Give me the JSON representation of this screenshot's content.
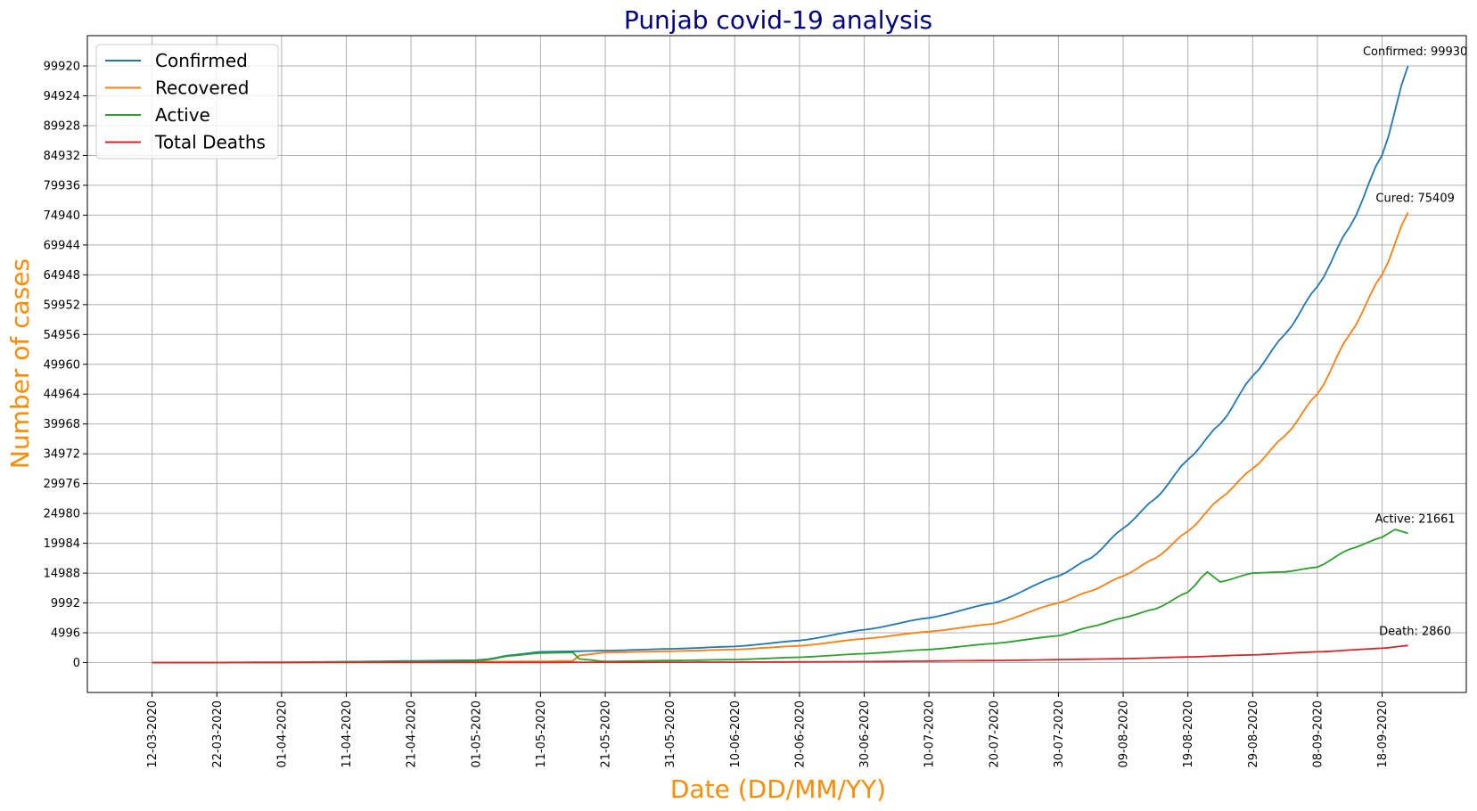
{
  "chart_data": {
    "type": "line",
    "title": "Punjab covid-19 analysis",
    "xlabel": "Date (DD/MM/YY)",
    "ylabel": "Number of cases",
    "x_ticks": [
      "12-03-2020",
      "22-03-2020",
      "01-04-2020",
      "11-04-2020",
      "21-04-2020",
      "01-05-2020",
      "11-05-2020",
      "21-05-2020",
      "31-05-2020",
      "10-06-2020",
      "20-06-2020",
      "30-06-2020",
      "10-07-2020",
      "20-07-2020",
      "30-07-2020",
      "09-08-2020",
      "19-08-2020",
      "29-08-2020",
      "08-09-2020",
      "18-09-2020"
    ],
    "y_ticks": [
      0,
      4996,
      9992,
      14988,
      19984,
      24980,
      29976,
      34972,
      39968,
      44964,
      49960,
      54956,
      59952,
      64948,
      69944,
      74940,
      79936,
      84932,
      89928,
      94924,
      99920
    ],
    "xlim": [
      "2020-03-02",
      "2020-10-01"
    ],
    "ylim": [
      -5000,
      105000
    ],
    "grid": true,
    "legend_position": "top-left",
    "colors": {
      "title": "#000080",
      "axis_labels": "#ff8c00",
      "grid": "#b0b0b0"
    },
    "series": [
      {
        "name": "Confirmed",
        "color": "#1f77b4",
        "points": [
          [
            "2020-03-12",
            0
          ],
          [
            "2020-03-22",
            20
          ],
          [
            "2020-04-01",
            50
          ],
          [
            "2020-04-11",
            150
          ],
          [
            "2020-04-21",
            280
          ],
          [
            "2020-05-01",
            400
          ],
          [
            "2020-05-03",
            600
          ],
          [
            "2020-05-06",
            1200
          ],
          [
            "2020-05-11",
            1800
          ],
          [
            "2020-05-16",
            1900
          ],
          [
            "2020-05-21",
            2000
          ],
          [
            "2020-05-31",
            2300
          ],
          [
            "2020-06-10",
            2700
          ],
          [
            "2020-06-20",
            3700
          ],
          [
            "2020-06-30",
            5500
          ],
          [
            "2020-07-10",
            7500
          ],
          [
            "2020-07-20",
            10000
          ],
          [
            "2020-07-30",
            14500
          ],
          [
            "2020-08-04",
            17500
          ],
          [
            "2020-08-09",
            22500
          ],
          [
            "2020-08-14",
            27500
          ],
          [
            "2020-08-19",
            34000
          ],
          [
            "2020-08-24",
            40000
          ],
          [
            "2020-08-29",
            48000
          ],
          [
            "2020-09-03",
            55000
          ],
          [
            "2020-09-08",
            63000
          ],
          [
            "2020-09-13",
            73000
          ],
          [
            "2020-09-18",
            85000
          ],
          [
            "2020-09-22",
            99930
          ]
        ]
      },
      {
        "name": "Recovered",
        "color": "#ff7f0e",
        "points": [
          [
            "2020-03-12",
            0
          ],
          [
            "2020-04-01",
            20
          ],
          [
            "2020-04-21",
            100
          ],
          [
            "2020-05-01",
            150
          ],
          [
            "2020-05-11",
            200
          ],
          [
            "2020-05-16",
            300
          ],
          [
            "2020-05-17",
            1200
          ],
          [
            "2020-05-21",
            1700
          ],
          [
            "2020-05-31",
            1900
          ],
          [
            "2020-06-10",
            2200
          ],
          [
            "2020-06-20",
            2800
          ],
          [
            "2020-06-30",
            4000
          ],
          [
            "2020-07-10",
            5200
          ],
          [
            "2020-07-20",
            6500
          ],
          [
            "2020-07-30",
            10000
          ],
          [
            "2020-08-04",
            12000
          ],
          [
            "2020-08-09",
            14500
          ],
          [
            "2020-08-14",
            17500
          ],
          [
            "2020-08-19",
            22000
          ],
          [
            "2020-08-24",
            27500
          ],
          [
            "2020-08-29",
            32500
          ],
          [
            "2020-09-03",
            38000
          ],
          [
            "2020-09-08",
            45000
          ],
          [
            "2020-09-13",
            55000
          ],
          [
            "2020-09-18",
            65000
          ],
          [
            "2020-09-22",
            75409
          ]
        ]
      },
      {
        "name": "Active",
        "color": "#2ca02c",
        "points": [
          [
            "2020-03-12",
            0
          ],
          [
            "2020-04-01",
            30
          ],
          [
            "2020-04-21",
            180
          ],
          [
            "2020-05-01",
            300
          ],
          [
            "2020-05-03",
            500
          ],
          [
            "2020-05-06",
            1100
          ],
          [
            "2020-05-11",
            1600
          ],
          [
            "2020-05-16",
            1700
          ],
          [
            "2020-05-17",
            600
          ],
          [
            "2020-05-21",
            200
          ],
          [
            "2020-05-31",
            350
          ],
          [
            "2020-06-10",
            500
          ],
          [
            "2020-06-20",
            900
          ],
          [
            "2020-06-30",
            1500
          ],
          [
            "2020-07-10",
            2200
          ],
          [
            "2020-07-20",
            3200
          ],
          [
            "2020-07-30",
            4500
          ],
          [
            "2020-08-04",
            6000
          ],
          [
            "2020-08-09",
            7500
          ],
          [
            "2020-08-14",
            9000
          ],
          [
            "2020-08-19",
            11800
          ],
          [
            "2020-08-22",
            15200
          ],
          [
            "2020-08-24",
            13500
          ],
          [
            "2020-08-29",
            15000
          ],
          [
            "2020-09-03",
            15200
          ],
          [
            "2020-09-08",
            16000
          ],
          [
            "2020-09-13",
            19000
          ],
          [
            "2020-09-18",
            21000
          ],
          [
            "2020-09-20",
            22300
          ],
          [
            "2020-09-22",
            21661
          ]
        ]
      },
      {
        "name": "Total Deaths",
        "color": "#d62728",
        "points": [
          [
            "2020-03-12",
            0
          ],
          [
            "2020-04-11",
            20
          ],
          [
            "2020-05-01",
            30
          ],
          [
            "2020-05-21",
            40
          ],
          [
            "2020-06-10",
            80
          ],
          [
            "2020-06-30",
            160
          ],
          [
            "2020-07-20",
            350
          ],
          [
            "2020-08-09",
            650
          ],
          [
            "2020-08-19",
            950
          ],
          [
            "2020-08-29",
            1300
          ],
          [
            "2020-09-08",
            1800
          ],
          [
            "2020-09-18",
            2400
          ],
          [
            "2020-09-22",
            2860
          ]
        ]
      }
    ],
    "annotations": [
      {
        "text": "Confirmed: 99930",
        "series": "Confirmed"
      },
      {
        "text": "Cured: 75409",
        "series": "Recovered"
      },
      {
        "text": "Active: 21661",
        "series": "Active"
      },
      {
        "text": "Death: 2860",
        "series": "Total Deaths"
      }
    ]
  }
}
